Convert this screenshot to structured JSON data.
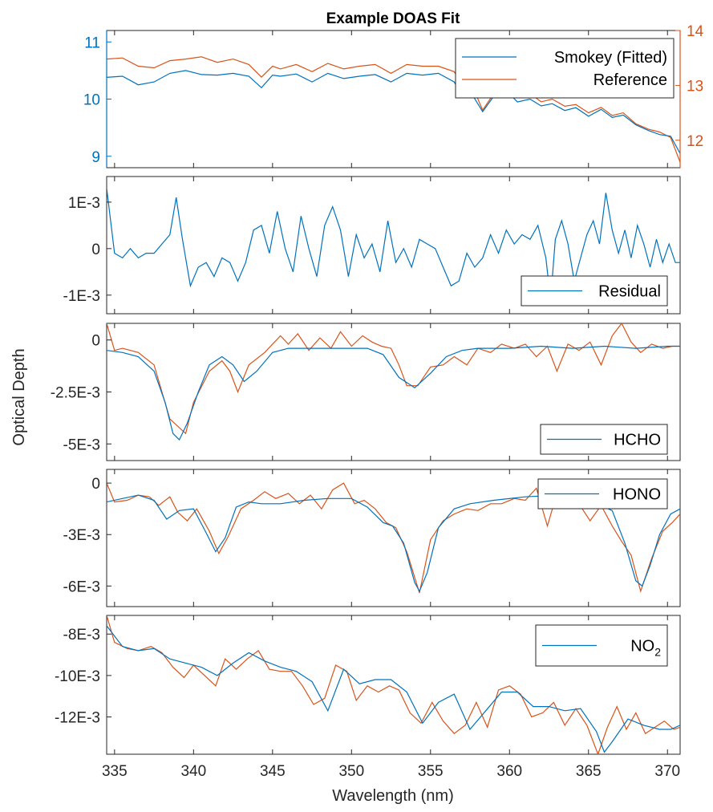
{
  "title": "Example DOAS Fit",
  "xlabel": "Wavelength (nm)",
  "ylabel": "Optical Depth",
  "colors": {
    "blue": "#0072BD",
    "orange": "#D95319",
    "axis": "#262626"
  },
  "chart_data": [
    {
      "type": "line",
      "title": "Example DOAS Fit",
      "xlim": [
        334.5,
        370.8
      ],
      "ylim": [
        8.8,
        11.2
      ],
      "ylim_right": [
        11.5,
        14
      ],
      "yticks": [
        9,
        10,
        11
      ],
      "yticklabels": [
        "9",
        "10",
        "11"
      ],
      "yticks_right": [
        12,
        13,
        14
      ],
      "yticklabels_right": [
        "12",
        "13",
        "14"
      ],
      "legend_loc": "top-right",
      "series": [
        {
          "name": "Smokey (Fitted)",
          "color": "#0072BD",
          "axis": "left",
          "x": [
            334.5,
            335.5,
            336.5,
            337.5,
            338.5,
            339.5,
            340.5,
            341.5,
            342.5,
            343.5,
            344.3,
            345,
            345.5,
            346.5,
            347.5,
            348.5,
            349.5,
            350.5,
            351.5,
            352.5,
            353.5,
            354.5,
            355.5,
            356.5,
            357,
            357.7,
            358.3,
            359,
            359.8,
            360.5,
            361.3,
            362,
            362.7,
            363.5,
            364.2,
            365,
            365.8,
            366.5,
            367.2,
            368,
            368.8,
            369.5,
            370.2,
            370.8
          ],
          "y": [
            10.38,
            10.4,
            10.25,
            10.3,
            10.45,
            10.5,
            10.43,
            10.42,
            10.45,
            10.4,
            10.2,
            10.42,
            10.4,
            10.44,
            10.3,
            10.45,
            10.36,
            10.4,
            10.43,
            10.3,
            10.45,
            10.42,
            10.45,
            10.3,
            10.05,
            10.05,
            9.78,
            10.05,
            10.15,
            9.95,
            10.0,
            9.88,
            9.92,
            9.8,
            9.85,
            9.7,
            9.82,
            9.68,
            9.72,
            9.55,
            9.45,
            9.38,
            9.35,
            9.05
          ]
        },
        {
          "name": "Reference",
          "color": "#D95319",
          "axis": "right",
          "x": [
            334.5,
            335.5,
            336.5,
            337.5,
            338.5,
            339.5,
            340.5,
            341.5,
            342.5,
            343.5,
            344.3,
            345,
            345.5,
            346.5,
            347.5,
            348.5,
            349.5,
            350.5,
            351.5,
            352.5,
            353.5,
            354.5,
            355.5,
            356.5,
            357,
            357.7,
            358.3,
            359,
            359.8,
            360.5,
            361.3,
            362,
            362.7,
            363.5,
            364.2,
            365,
            365.8,
            366.5,
            367.2,
            368,
            368.8,
            369.5,
            370.2,
            370.8
          ],
          "y": [
            13.48,
            13.5,
            13.35,
            13.32,
            13.45,
            13.48,
            13.52,
            13.42,
            13.48,
            13.38,
            13.15,
            13.35,
            13.3,
            13.38,
            13.25,
            13.4,
            13.3,
            13.35,
            13.38,
            13.22,
            13.38,
            13.35,
            13.35,
            13.25,
            13.0,
            12.95,
            12.55,
            12.85,
            13.0,
            12.8,
            12.85,
            12.7,
            12.75,
            12.62,
            12.65,
            12.5,
            12.6,
            12.45,
            12.5,
            12.3,
            12.2,
            12.15,
            12.05,
            11.6
          ]
        }
      ]
    },
    {
      "type": "line",
      "xlim": [
        334.5,
        370.8
      ],
      "ylim": [
        -0.0014,
        0.00155
      ],
      "yticks": [
        0.001,
        0,
        -0.001
      ],
      "yticklabels": [
        "1E-3",
        "0",
        "-1E-3"
      ],
      "legend_loc": "bottom-right",
      "series": [
        {
          "name": "Residual",
          "color": "#0072BD",
          "x": [
            334.5,
            335,
            335.5,
            336,
            336.5,
            337,
            337.5,
            338,
            338.5,
            338.9,
            339.3,
            339.8,
            340.3,
            340.8,
            341.3,
            341.8,
            342.3,
            342.8,
            343.3,
            343.8,
            344.3,
            344.8,
            345.3,
            345.8,
            346.3,
            346.8,
            347.3,
            347.8,
            348.3,
            348.8,
            349.3,
            349.8,
            350.3,
            350.8,
            351.3,
            351.8,
            352.3,
            352.8,
            353.3,
            353.8,
            354.3,
            354.8,
            355.3,
            355.8,
            356.3,
            356.8,
            357.3,
            357.8,
            358.3,
            358.8,
            359.3,
            359.8,
            360.3,
            360.8,
            361.3,
            361.8,
            362.3,
            362.6,
            362.9,
            363.3,
            363.7,
            364.1,
            364.5,
            364.9,
            365.3,
            365.7,
            366.1,
            366.5,
            366.9,
            367.3,
            367.7,
            368.1,
            368.5,
            368.9,
            369.3,
            369.7,
            370.1,
            370.5,
            370.8
          ],
          "y": [
            0.0013,
            -0.0001,
            -0.0002,
            0.0,
            -0.0002,
            -0.0001,
            -0.0001,
            0.0001,
            0.0003,
            0.0011,
            0.0002,
            -0.0008,
            -0.0004,
            -0.0003,
            -0.0006,
            -0.0002,
            -0.0003,
            -0.0007,
            -0.0003,
            0.0004,
            0.0005,
            -0.0001,
            0.0008,
            0.0,
            -0.0005,
            0.0007,
            0.0,
            -0.0006,
            0.0005,
            0.0009,
            0.0004,
            -0.0006,
            0.0003,
            -0.0002,
            0.0001,
            -0.0005,
            0.0006,
            -0.0003,
            0.0,
            -0.0004,
            0.0002,
            0.0001,
            0.0,
            -0.0004,
            -0.0008,
            -0.0007,
            -0.0001,
            -0.0004,
            -0.0002,
            0.0003,
            -0.0001,
            0.0004,
            0.0001,
            0.0003,
            0.0002,
            0.0005,
            -0.0002,
            -0.0011,
            0.0002,
            0.0006,
            0.0001,
            -0.0007,
            -0.0002,
            0.0003,
            0.0006,
            0.0001,
            0.0012,
            0.0004,
            -0.0001,
            0.0004,
            -0.0002,
            0.0005,
            0.0001,
            -0.0004,
            0.0002,
            -0.0003,
            0.0001,
            -0.0003,
            -0.0003
          ]
        }
      ]
    },
    {
      "type": "line",
      "xlim": [
        334.5,
        370.8
      ],
      "ylim": [
        -0.0058,
        0.0008
      ],
      "yticks": [
        0,
        -0.0025,
        -0.005
      ],
      "yticklabels": [
        "0",
        "-2.5E-3",
        "-5E-3"
      ],
      "legend_loc": "bottom-right",
      "series": [
        {
          "name": "HCHO",
          "color": "#0072BD",
          "x": [
            334.5,
            335.5,
            336.5,
            337.5,
            338.2,
            338.7,
            339.1,
            339.6,
            340.3,
            341,
            341.8,
            342.5,
            343.2,
            344,
            345,
            346,
            347,
            348,
            349,
            350,
            351,
            352,
            353,
            354,
            355,
            356,
            357,
            358,
            360,
            362,
            364,
            366,
            368,
            370,
            370.8
          ],
          "y": [
            -0.0005,
            -0.0006,
            -0.0008,
            -0.0015,
            -0.003,
            -0.0045,
            -0.0048,
            -0.004,
            -0.0025,
            -0.0012,
            -0.0008,
            -0.0012,
            -0.002,
            -0.0015,
            -0.0006,
            -0.0004,
            -0.0004,
            -0.0004,
            -0.0004,
            -0.0004,
            -0.0004,
            -0.0007,
            -0.0018,
            -0.0023,
            -0.0016,
            -0.0008,
            -0.0005,
            -0.0004,
            -0.0004,
            -0.0003,
            -0.0004,
            -0.0003,
            -0.0004,
            -0.0003,
            -0.0003
          ]
        }
      ]
    },
    {
      "type": "line",
      "xlim": [
        334.5,
        370.8
      ],
      "ylim": [
        -0.0072,
        0.0008
      ],
      "yticks": [
        0,
        -0.003,
        -0.006
      ],
      "yticklabels": [
        "0",
        "-3E-3",
        "-6E-3"
      ],
      "legend_loc": "top-right",
      "series": [
        {
          "name": "HONO",
          "color": "#0072BD",
          "x": [
            334.5,
            335.5,
            336.5,
            337.5,
            338.3,
            339.1,
            340,
            340.8,
            341.4,
            342,
            342.7,
            343.5,
            344.3,
            345.5,
            347,
            348.5,
            350,
            351,
            352,
            352.6,
            353.3,
            354,
            354.3,
            354.8,
            355.5,
            356.5,
            357.5,
            359,
            361,
            363,
            365,
            366.5,
            367.3,
            368,
            368.4,
            368.9,
            369.5,
            370.2,
            370.8
          ],
          "y": [
            -0.0011,
            -0.0009,
            -0.0007,
            -0.001,
            -0.0021,
            -0.0016,
            -0.0015,
            -0.0029,
            -0.004,
            -0.0032,
            -0.0014,
            -0.0011,
            -0.0012,
            -0.0012,
            -0.001,
            -0.0009,
            -0.0009,
            -0.0014,
            -0.0023,
            -0.0025,
            -0.0035,
            -0.0058,
            -0.0063,
            -0.0052,
            -0.0026,
            -0.0015,
            -0.0012,
            -0.001,
            -0.0008,
            -0.0007,
            -0.001,
            -0.0016,
            -0.0035,
            -0.0057,
            -0.006,
            -0.0048,
            -0.003,
            -0.0018,
            -0.0015
          ]
        }
      ]
    },
    {
      "type": "line",
      "xlim": [
        334.5,
        370.8
      ],
      "ylim": [
        -0.0138,
        -0.0071
      ],
      "yticks": [
        -0.008,
        -0.01,
        -0.012
      ],
      "yticklabels": [
        "-8E-3",
        "-10E-3",
        "-12E-3"
      ],
      "legend_loc": "top-right",
      "series": [
        {
          "name": "NO",
          "name_sub": "2",
          "color": "#0072BD",
          "x": [
            334.5,
            335.5,
            336.5,
            337.5,
            338.5,
            339.5,
            340.5,
            341.5,
            342.5,
            343.5,
            344.5,
            345.5,
            346.5,
            347.5,
            348.5,
            349.5,
            350.5,
            351.5,
            352.5,
            353.5,
            354.5,
            355.5,
            356.5,
            357.5,
            358.5,
            359.5,
            360.5,
            361.5,
            362.5,
            363.5,
            364.5,
            365.5,
            366,
            366.5,
            367.5,
            368.5,
            369.5,
            370.2,
            370.8
          ],
          "y": [
            -0.0076,
            -0.0086,
            -0.0088,
            -0.0087,
            -0.0092,
            -0.0094,
            -0.0096,
            -0.01,
            -0.0094,
            -0.0089,
            -0.0093,
            -0.0096,
            -0.0098,
            -0.0103,
            -0.0117,
            -0.0097,
            -0.0104,
            -0.0102,
            -0.0102,
            -0.0108,
            -0.0123,
            -0.0113,
            -0.0109,
            -0.0126,
            -0.0117,
            -0.0108,
            -0.0108,
            -0.0115,
            -0.0115,
            -0.0117,
            -0.0116,
            -0.0127,
            -0.0137,
            -0.0132,
            -0.0121,
            -0.0124,
            -0.0126,
            -0.0126,
            -0.0124
          ]
        }
      ]
    }
  ],
  "reference_overlays": [
    {
      "panel": 2,
      "name": "HCHO reference",
      "color": "#D95319",
      "x": [
        334.5,
        335,
        335.5,
        336.5,
        337.5,
        338,
        338.5,
        339.5,
        340,
        341,
        341.8,
        342.3,
        342.8,
        343.5,
        344.5,
        345.5,
        346,
        346.6,
        347.3,
        348,
        348.7,
        349.3,
        350,
        350.7,
        351.3,
        351.9,
        352.5,
        353,
        353.5,
        354.2,
        355,
        355.8,
        356.5,
        357.3,
        358,
        358.8,
        359.5,
        360.3,
        361,
        361.7,
        362.4,
        363,
        363.7,
        364.4,
        365.1,
        365.8,
        366.5,
        367.1,
        367.7,
        368.3,
        369,
        369.7,
        370.3,
        370.8
      ],
      "y": [
        0.0008,
        -0.0005,
        -0.0004,
        -0.0006,
        -0.0012,
        -0.0025,
        -0.0038,
        -0.0045,
        -0.003,
        -0.0015,
        -0.001,
        -0.0015,
        -0.0025,
        -0.0012,
        -0.0006,
        0.0002,
        -0.0002,
        0.0003,
        -0.0005,
        0.0001,
        -0.0004,
        0.0004,
        -0.0003,
        0.0002,
        -0.0001,
        -0.0003,
        -0.0004,
        -0.0012,
        -0.0022,
        -0.0022,
        -0.0013,
        -0.0012,
        -0.0008,
        -0.0012,
        -0.0004,
        -0.0006,
        -0.0002,
        -0.0004,
        -0.0002,
        -0.0008,
        -0.0003,
        -0.0015,
        -0.0002,
        -0.0005,
        -0.0001,
        -0.0012,
        0.0002,
        0.0008,
        -0.0001,
        -0.0006,
        -0.0002,
        -0.0004,
        -0.0003,
        -0.0003
      ]
    },
    {
      "panel": 3,
      "name": "HONO reference",
      "color": "#D95319",
      "x": [
        334.5,
        335,
        335.8,
        336.5,
        337.2,
        337.8,
        338.5,
        339,
        339.6,
        340.2,
        341,
        341.6,
        342.2,
        343,
        343.8,
        344.5,
        345.2,
        346,
        346.7,
        347.4,
        348.1,
        348.8,
        349.5,
        350.2,
        350.8,
        351.5,
        352.2,
        352.8,
        353.5,
        354.3,
        355,
        355.8,
        356.5,
        357.3,
        358,
        358.8,
        359.5,
        360.3,
        361,
        361.7,
        362.4,
        363,
        363.7,
        364.4,
        365.1,
        365.8,
        366.5,
        367.1,
        367.7,
        368.3,
        369,
        369.7,
        370.3,
        370.8
      ],
      "y": [
        0.0,
        -0.0011,
        -0.001,
        -0.0007,
        -0.0008,
        -0.0013,
        -0.0008,
        -0.0017,
        -0.0022,
        -0.0015,
        -0.0028,
        -0.0041,
        -0.0031,
        -0.0015,
        -0.001,
        -0.0005,
        -0.0009,
        -0.0006,
        -0.0012,
        -0.0007,
        -0.0015,
        -0.0004,
        0.0,
        -0.0012,
        -0.001,
        -0.0015,
        -0.0023,
        -0.0026,
        -0.004,
        -0.0064,
        -0.0033,
        -0.0022,
        -0.0018,
        -0.0015,
        -0.0016,
        -0.0012,
        -0.0012,
        -0.0009,
        -0.001,
        -0.0003,
        -0.0025,
        -0.0006,
        -0.0012,
        -0.0012,
        -0.0022,
        -0.0013,
        -0.0025,
        -0.0034,
        -0.0042,
        -0.0063,
        -0.0044,
        -0.0028,
        -0.0023,
        -0.0018
      ]
    },
    {
      "panel": 4,
      "name": "NO2 reference",
      "color": "#D95319",
      "x": [
        334.5,
        335,
        335.8,
        336.5,
        337.3,
        338,
        338.7,
        339.4,
        340,
        340.7,
        341.4,
        342,
        342.7,
        343.4,
        344.1,
        344.8,
        345.5,
        346.2,
        346.9,
        347.6,
        348.3,
        349,
        349.7,
        350.3,
        351,
        351.7,
        352.4,
        353,
        353.7,
        354.4,
        355.1,
        355.8,
        356.5,
        357.2,
        357.9,
        358.6,
        359.3,
        360,
        360.7,
        361.4,
        362.1,
        362.8,
        363.5,
        364.2,
        364.9,
        365.6,
        366.2,
        366.8,
        367.4,
        368,
        368.6,
        369.2,
        369.8,
        370.4,
        370.8
      ],
      "y": [
        -0.0071,
        -0.0084,
        -0.0087,
        -0.0088,
        -0.0086,
        -0.0089,
        -0.0096,
        -0.0101,
        -0.0095,
        -0.01,
        -0.0105,
        -0.0092,
        -0.0097,
        -0.0092,
        -0.0088,
        -0.0097,
        -0.0098,
        -0.0098,
        -0.0105,
        -0.0114,
        -0.0111,
        -0.0095,
        -0.0098,
        -0.0112,
        -0.0105,
        -0.0108,
        -0.0105,
        -0.0107,
        -0.0118,
        -0.0123,
        -0.0113,
        -0.0122,
        -0.0128,
        -0.0124,
        -0.0113,
        -0.0125,
        -0.0107,
        -0.0105,
        -0.0109,
        -0.012,
        -0.0118,
        -0.0113,
        -0.0124,
        -0.0116,
        -0.0124,
        -0.0138,
        -0.0125,
        -0.0115,
        -0.0126,
        -0.0118,
        -0.0128,
        -0.0125,
        -0.0122,
        -0.0126,
        -0.0125
      ]
    }
  ],
  "xticks": [
    335,
    340,
    345,
    350,
    355,
    360,
    365,
    370
  ],
  "xticklabels": [
    "335",
    "340",
    "345",
    "350",
    "355",
    "360",
    "365",
    "370"
  ]
}
